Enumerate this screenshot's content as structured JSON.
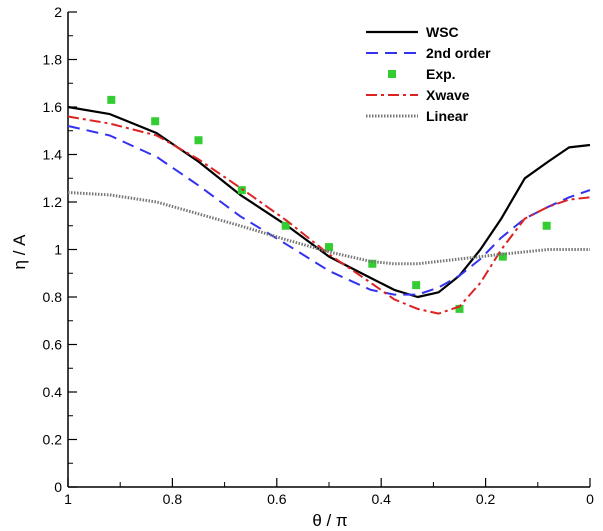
{
  "chart_data": {
    "type": "line",
    "title": "",
    "xlabel": "θ / π",
    "ylabel": "η / A",
    "xlim": [
      1,
      0
    ],
    "ylim": [
      0,
      2
    ],
    "x_reversed": true,
    "grid": false,
    "legend_position": "top-right",
    "xticks": [
      1,
      0.8,
      0.6,
      0.4,
      0.2,
      0
    ],
    "xtick_labels": [
      "1",
      "0.8",
      "0.6",
      "0.4",
      "0.2",
      "0"
    ],
    "yticks": [
      0,
      0.2,
      0.4,
      0.6,
      0.8,
      1,
      1.2,
      1.4,
      1.6,
      1.8,
      2
    ],
    "ytick_labels": [
      "0",
      "0.2",
      "0.4",
      "0.6",
      "0.8",
      "1",
      "1.2",
      "1.4",
      "1.6",
      "1.8",
      "2"
    ],
    "series": [
      {
        "name": "WSC",
        "style": "solid",
        "color": "#000000",
        "x": [
          1.0,
          0.92,
          0.83,
          0.75,
          0.67,
          0.58,
          0.5,
          0.42,
          0.375,
          0.33,
          0.29,
          0.25,
          0.21,
          0.17,
          0.125,
          0.08,
          0.04,
          0.0
        ],
        "y": [
          1.6,
          1.57,
          1.49,
          1.37,
          1.23,
          1.1,
          0.97,
          0.88,
          0.83,
          0.8,
          0.82,
          0.89,
          1.0,
          1.13,
          1.3,
          1.37,
          1.43,
          1.44
        ]
      },
      {
        "name": "2nd order",
        "style": "dashed",
        "color": "#3333ee",
        "x": [
          1.0,
          0.92,
          0.83,
          0.75,
          0.67,
          0.58,
          0.5,
          0.42,
          0.375,
          0.33,
          0.29,
          0.25,
          0.21,
          0.17,
          0.125,
          0.08,
          0.04,
          0.0
        ],
        "y": [
          1.52,
          1.48,
          1.39,
          1.27,
          1.14,
          1.02,
          0.91,
          0.83,
          0.81,
          0.81,
          0.84,
          0.89,
          0.96,
          1.05,
          1.13,
          1.18,
          1.22,
          1.25
        ]
      },
      {
        "name": "Exp.",
        "style": "markers",
        "color": "#33cc33",
        "x": [
          0.917,
          0.833,
          0.75,
          0.667,
          0.583,
          0.5,
          0.417,
          0.333,
          0.25,
          0.167,
          0.083
        ],
        "y": [
          1.63,
          1.54,
          1.46,
          1.25,
          1.1,
          1.01,
          0.94,
          0.85,
          0.75,
          0.97,
          1.1
        ]
      },
      {
        "name": "Xwave",
        "style": "dashdot",
        "color": "#dd2222",
        "x": [
          1.0,
          0.92,
          0.83,
          0.75,
          0.67,
          0.58,
          0.5,
          0.42,
          0.375,
          0.33,
          0.29,
          0.25,
          0.21,
          0.17,
          0.125,
          0.08,
          0.04,
          0.0
        ],
        "y": [
          1.56,
          1.53,
          1.48,
          1.38,
          1.26,
          1.12,
          0.98,
          0.86,
          0.79,
          0.75,
          0.73,
          0.76,
          0.86,
          1.0,
          1.13,
          1.18,
          1.21,
          1.22
        ]
      },
      {
        "name": "Linear",
        "style": "dotted",
        "color": "#777777",
        "x": [
          1.0,
          0.92,
          0.83,
          0.75,
          0.67,
          0.58,
          0.5,
          0.42,
          0.375,
          0.33,
          0.29,
          0.25,
          0.21,
          0.17,
          0.125,
          0.08,
          0.04,
          0.0
        ],
        "y": [
          1.24,
          1.23,
          1.2,
          1.15,
          1.1,
          1.04,
          0.99,
          0.95,
          0.94,
          0.94,
          0.95,
          0.96,
          0.97,
          0.98,
          0.99,
          1.0,
          1.0,
          1.0
        ]
      }
    ]
  }
}
